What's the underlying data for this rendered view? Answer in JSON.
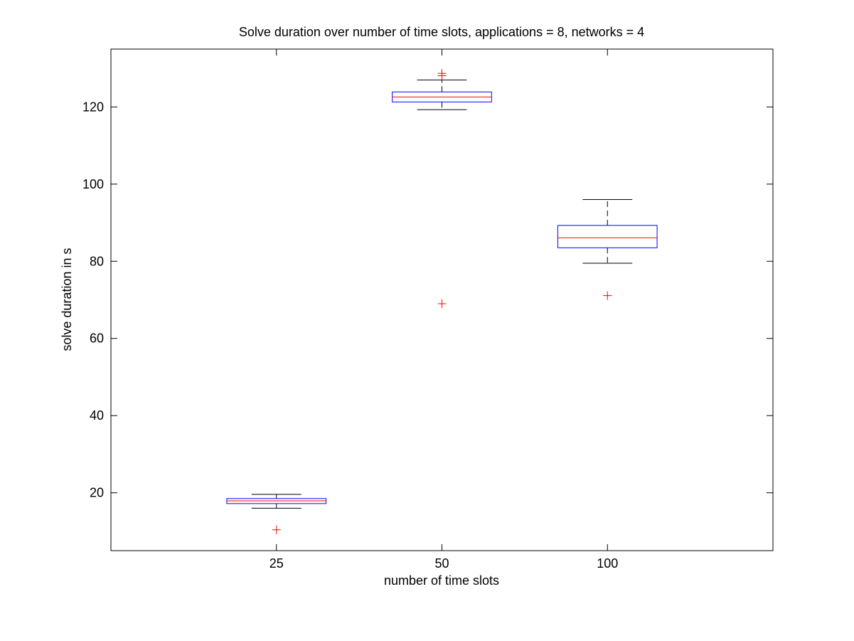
{
  "chart_data": {
    "type": "boxplot",
    "title": "Solve duration over number of time slots, applications = 8, networks = 4",
    "xlabel": "number of time slots",
    "ylabel": "solve duration in s",
    "ylim": [
      5,
      135
    ],
    "yticks": [
      20,
      40,
      60,
      80,
      100,
      120
    ],
    "ytick_labels": [
      "20",
      "40",
      "60",
      "80",
      "100",
      "120"
    ],
    "grid": false,
    "categories": [
      "25",
      "50",
      "100"
    ],
    "boxes": [
      {
        "category": "25",
        "whisker_low": 16.0,
        "q1": 17.2,
        "median": 17.9,
        "q3": 18.5,
        "whisker_high": 19.6,
        "outliers": [
          10.4
        ]
      },
      {
        "category": "50",
        "whisker_low": 119.3,
        "q1": 121.3,
        "median": 122.6,
        "q3": 123.9,
        "whisker_high": 127.0,
        "outliers": [
          128.1,
          128.7,
          69.0
        ]
      },
      {
        "category": "100",
        "whisker_low": 79.5,
        "q1": 83.5,
        "median": 86.1,
        "q3": 89.3,
        "whisker_high": 96.0,
        "outliers": [
          71.1
        ]
      }
    ],
    "colors": {
      "box": "#0000ff",
      "median": "#ff0000",
      "whisker": "#000000",
      "outlier": "#ff0000",
      "axes": "#000000"
    }
  }
}
